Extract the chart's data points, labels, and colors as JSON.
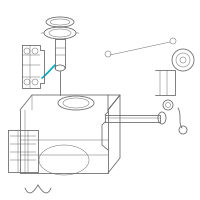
{
  "bg_color": "#ffffff",
  "line_color": "#6a6a6a",
  "highlight_color": "#00aabb",
  "lw": 0.6,
  "tlw": 0.35
}
